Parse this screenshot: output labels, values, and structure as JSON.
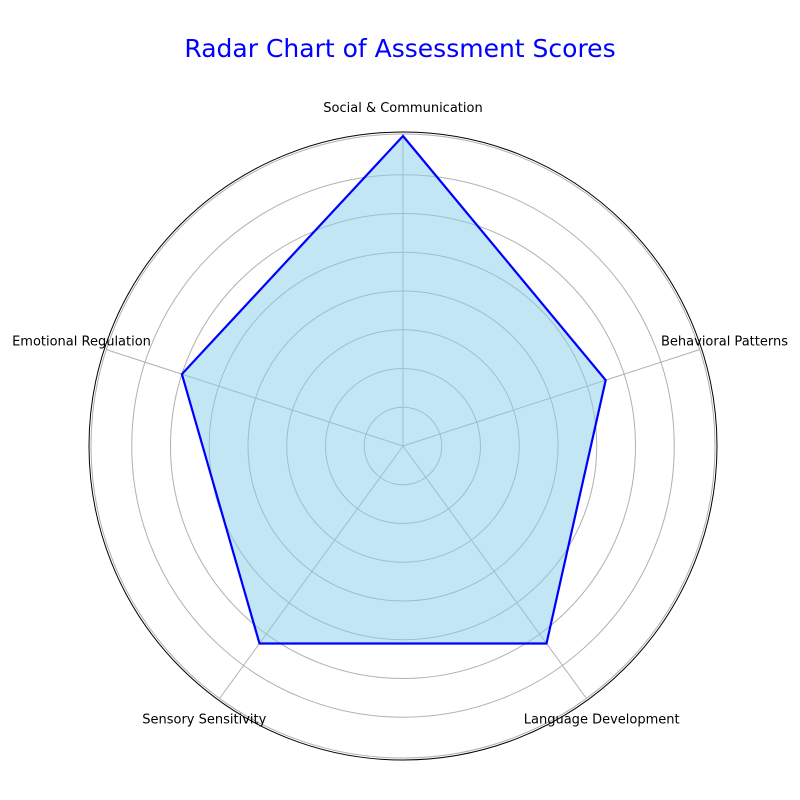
{
  "chart_data": {
    "type": "radar",
    "title": "Radar Chart of Assessment Scores",
    "categories": [
      "Social & Communication",
      "Behavioral Patterns",
      "Language Development",
      "Sensory Sensitivity",
      "Emotional Regulation"
    ],
    "series": [
      {
        "values": [
          8,
          5.5,
          6.3,
          6.3,
          6
        ]
      }
    ],
    "rlim": [
      0,
      8
    ],
    "grid_rings": [
      1,
      2,
      3,
      4,
      5,
      6,
      7
    ],
    "radial_tick_labels": false,
    "grid": true,
    "colors": {
      "title": "#0000ff",
      "line": "#0000ff",
      "fill": "#87ceeb",
      "grid": "#b0b0b0",
      "frame": "#000000"
    }
  }
}
